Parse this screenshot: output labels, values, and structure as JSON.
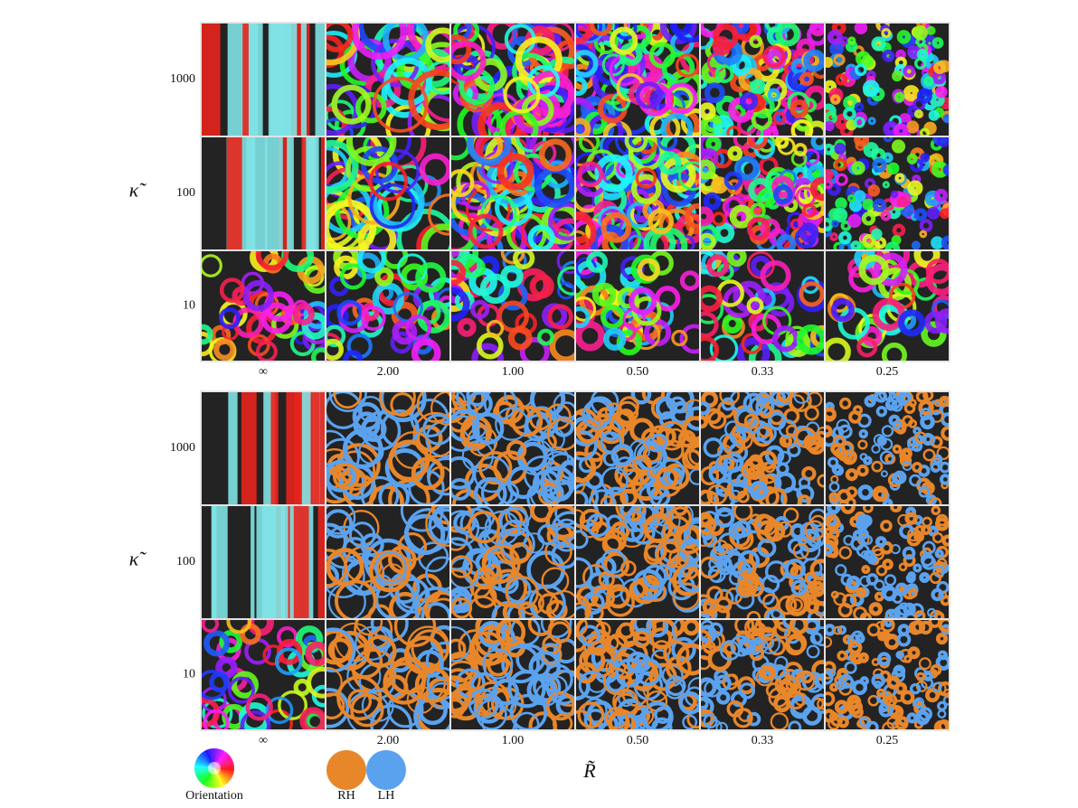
{
  "panels": [
    {
      "y_axis_label": "κ̃",
      "row_labels": [
        "1000",
        "100",
        "10"
      ],
      "column_labels": [
        "∞",
        "2.00",
        "1.00",
        "0.50",
        "0.33",
        "0.25"
      ]
    },
    {
      "y_axis_label": "κ̃",
      "row_labels": [
        "1000",
        "100",
        "10"
      ],
      "column_labels": [
        "∞",
        "2.00",
        "1.00",
        "0.50",
        "0.33",
        "0.25"
      ]
    }
  ],
  "x_axis_label": "R̃",
  "legend": {
    "orientation": "Orientation",
    "rh": "RH",
    "lh": "LH"
  }
}
